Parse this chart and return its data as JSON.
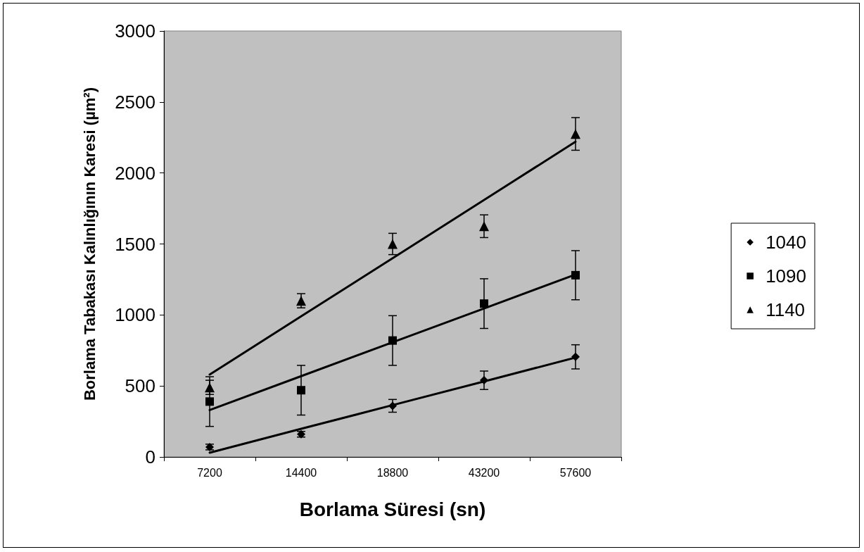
{
  "chart_data": {
    "type": "scatter",
    "xlabel": "Borlama Süresi (sn)",
    "ylabel": "Borlama Tabakası Kalınlığının Karesi (µm²)",
    "categories": [
      "7200",
      "14400",
      "18800",
      "43200",
      "57600"
    ],
    "ylim": [
      0,
      3000
    ],
    "yticks": [
      0,
      500,
      1000,
      1500,
      2000,
      2500,
      3000
    ],
    "grid": false,
    "legend": "right",
    "series": [
      {
        "name": "1040",
        "color": "#000000",
        "marker": "diamond",
        "values": [
          70,
          160,
          360,
          540,
          705
        ],
        "errors": [
          20,
          20,
          45,
          65,
          85
        ]
      },
      {
        "name": "1090",
        "color": "#000000",
        "marker": "square",
        "values": [
          390,
          470,
          820,
          1080,
          1280
        ],
        "errors": [
          175,
          175,
          175,
          175,
          173
        ]
      },
      {
        "name": "1140",
        "color": "#000000",
        "marker": "triangle",
        "values": [
          490,
          1100,
          1500,
          1625,
          2275
        ],
        "errors": [
          50,
          50,
          75,
          80,
          115
        ]
      },
      {
        "type": "line",
        "color": "#000000",
        "marker": "none",
        "values": [
          30,
          198,
          365,
          532,
          700
        ]
      },
      {
        "type": "line",
        "color": "#000000",
        "marker": "none",
        "values": [
          330,
          569,
          808,
          1046,
          1285
        ]
      },
      {
        "type": "line",
        "color": "#000000",
        "marker": "none",
        "values": [
          580,
          990,
          1400,
          1810,
          2220
        ]
      }
    ]
  }
}
